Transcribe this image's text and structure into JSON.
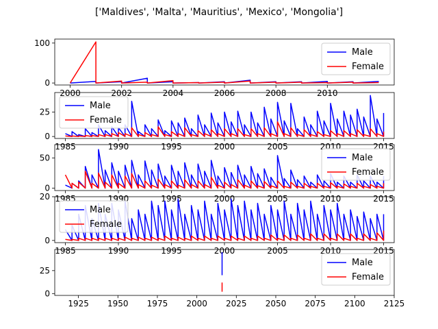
{
  "figure": {
    "title": "['Maldives', 'Malta', 'Mauritius', 'Mexico', 'Mongolia']",
    "male_color": "#0000ff",
    "female_color": "#ff0000"
  },
  "chart_data": [
    {
      "type": "line",
      "xlim": [
        1999.4,
        2012.6
      ],
      "ylim": [
        -5,
        110
      ],
      "x_ticks": [
        2000,
        2002,
        2004,
        2006,
        2008,
        2010
      ],
      "y_ticks": [
        0,
        100
      ],
      "legend": "right",
      "series": [
        {
          "name": "Male",
          "color": "#0000ff",
          "points": [
            [
              2000,
              0
            ],
            [
              2001,
              4
            ],
            [
              2001,
              0
            ],
            [
              2002,
              3
            ],
            [
              2002,
              0
            ],
            [
              2003,
              12
            ],
            [
              2003,
              0
            ],
            [
              2004,
              3
            ],
            [
              2004,
              0
            ],
            [
              2005,
              1
            ],
            [
              2005,
              0
            ],
            [
              2006,
              3
            ],
            [
              2006,
              0
            ],
            [
              2007,
              7
            ],
            [
              2007,
              0
            ],
            [
              2008,
              3
            ],
            [
              2008,
              0
            ],
            [
              2009,
              3
            ],
            [
              2009,
              0
            ],
            [
              2010,
              4
            ],
            [
              2010,
              0
            ],
            [
              2011,
              3
            ],
            [
              2011,
              0
            ],
            [
              2012,
              4
            ]
          ]
        },
        {
          "name": "Female",
          "color": "#ff0000",
          "points": [
            [
              2000,
              0
            ],
            [
              2001,
              103
            ],
            [
              2001,
              0
            ],
            [
              2002,
              5
            ],
            [
              2002,
              0
            ],
            [
              2003,
              2
            ],
            [
              2003,
              0
            ],
            [
              2004,
              6
            ],
            [
              2004,
              0
            ],
            [
              2005,
              1
            ],
            [
              2005,
              0
            ],
            [
              2006,
              2
            ],
            [
              2006,
              0
            ],
            [
              2007,
              5
            ],
            [
              2007,
              0
            ],
            [
              2008,
              2
            ],
            [
              2008,
              0
            ],
            [
              2009,
              2
            ],
            [
              2009,
              0
            ],
            [
              2010,
              1
            ],
            [
              2010,
              0
            ],
            [
              2011,
              2
            ],
            [
              2011,
              0
            ],
            [
              2012,
              1
            ]
          ]
        }
      ]
    },
    {
      "type": "line",
      "xlim": [
        1984,
        2016
      ],
      "ylim": [
        -2,
        45
      ],
      "x_ticks": [
        1985,
        1990,
        1995,
        2000,
        2005,
        2010,
        2015
      ],
      "y_ticks": [
        0,
        25
      ],
      "legend": "left",
      "series": [
        {
          "name": "Male",
          "color": "#0000ff",
          "peaks": [
            3,
            5,
            2,
            8,
            4,
            12,
            6,
            10,
            9,
            12,
            36,
            5,
            12,
            8,
            17,
            6,
            16,
            14,
            19,
            8,
            22,
            12,
            24,
            14,
            25,
            15,
            26,
            12,
            25,
            14,
            30,
            18,
            35,
            16,
            34,
            8,
            20,
            12,
            26,
            16,
            34,
            18,
            26,
            22,
            28,
            20,
            42,
            18,
            24
          ]
        },
        {
          "name": "Female",
          "color": "#ff0000",
          "peaks": [
            0.5,
            0.5,
            0.5,
            1,
            1,
            2,
            2,
            3,
            4,
            3,
            9,
            2,
            4,
            2,
            10,
            2,
            5,
            3,
            9,
            2,
            6,
            3,
            7,
            3,
            8,
            3,
            8,
            2,
            8,
            3,
            9,
            3,
            15,
            3,
            9,
            2,
            7,
            2,
            5,
            2,
            6,
            3,
            6,
            3,
            7,
            2,
            8,
            3,
            5
          ]
        }
      ]
    },
    {
      "type": "line",
      "xlim": [
        1984,
        2016
      ],
      "ylim": [
        -4,
        72
      ],
      "x_ticks": [
        1985,
        1990,
        1995,
        2000,
        2005,
        2010,
        2015
      ],
      "y_ticks": [
        0,
        50
      ],
      "legend": "right",
      "series": [
        {
          "name": "Male",
          "color": "#0000ff",
          "peaks": [
            5,
            8,
            12,
            36,
            22,
            64,
            30,
            42,
            28,
            38,
            46,
            22,
            45,
            30,
            40,
            20,
            38,
            28,
            42,
            22,
            40,
            28,
            46,
            20,
            34,
            26,
            38,
            22,
            36,
            24,
            32,
            18,
            54,
            16,
            30,
            14,
            20,
            10,
            22,
            12,
            24,
            10,
            20,
            10,
            22,
            12,
            20,
            10,
            20
          ]
        },
        {
          "name": "Female",
          "color": "#ff0000",
          "peaks": [
            22,
            8,
            10,
            28,
            8,
            25,
            10,
            22,
            8,
            20,
            24,
            6,
            12,
            5,
            15,
            6,
            12,
            5,
            14,
            6,
            12,
            6,
            18,
            5,
            10,
            6,
            14,
            5,
            12,
            4,
            11,
            4,
            12,
            3,
            10,
            3,
            8,
            3,
            8,
            3,
            9,
            3,
            7,
            3,
            8,
            3,
            6,
            3,
            8
          ]
        }
      ]
    },
    {
      "type": "line",
      "xlim": [
        1984,
        2016
      ],
      "ylim": [
        -1,
        20
      ],
      "x_ticks": [
        1985,
        1990,
        1995,
        2000,
        2005,
        2010,
        2015
      ],
      "y_ticks": [
        0,
        20
      ],
      "legend": "left",
      "series": [
        {
          "name": "Male",
          "color": "#0000ff",
          "peaks": [
            5,
            7,
            12,
            16,
            10,
            17,
            12,
            17,
            14,
            18,
            10,
            14,
            12,
            18,
            16,
            18,
            14,
            19,
            12,
            16,
            14,
            18,
            12,
            17,
            14,
            19,
            16,
            18,
            14,
            17,
            12,
            16,
            14,
            18,
            12,
            17,
            14,
            18,
            12,
            16,
            14,
            17,
            12,
            14,
            11,
            13,
            10,
            12,
            12
          ]
        },
        {
          "name": "Female",
          "color": "#ff0000",
          "peaks": [
            0.5,
            0.5,
            1,
            1,
            1,
            1,
            1,
            1,
            1,
            1.5,
            1,
            1.5,
            1,
            1.5,
            1,
            2,
            1,
            1.5,
            1,
            2,
            1,
            2,
            1,
            2,
            1,
            2,
            1,
            2,
            1,
            2,
            1,
            2.5,
            1,
            2.5,
            1,
            2.5,
            1,
            3,
            1,
            3,
            1,
            3,
            1,
            3,
            1,
            3,
            1,
            3.5,
            4.5
          ]
        }
      ]
    },
    {
      "type": "line",
      "xlim": [
        1910,
        2125
      ],
      "ylim": [
        -2,
        48
      ],
      "x_ticks": [
        1925,
        1950,
        1975,
        2000,
        2025,
        2050,
        2075,
        2100,
        2125
      ],
      "y_ticks": [
        0,
        25
      ],
      "legend": "right",
      "series": [
        {
          "name": "Male",
          "color": "#0000ff",
          "points": [
            [
              2016,
              20
            ],
            [
              2016,
              45
            ]
          ]
        },
        {
          "name": "Female",
          "color": "#ff0000",
          "points": [
            [
              2016,
              2
            ],
            [
              2016,
              12
            ]
          ]
        }
      ]
    }
  ]
}
